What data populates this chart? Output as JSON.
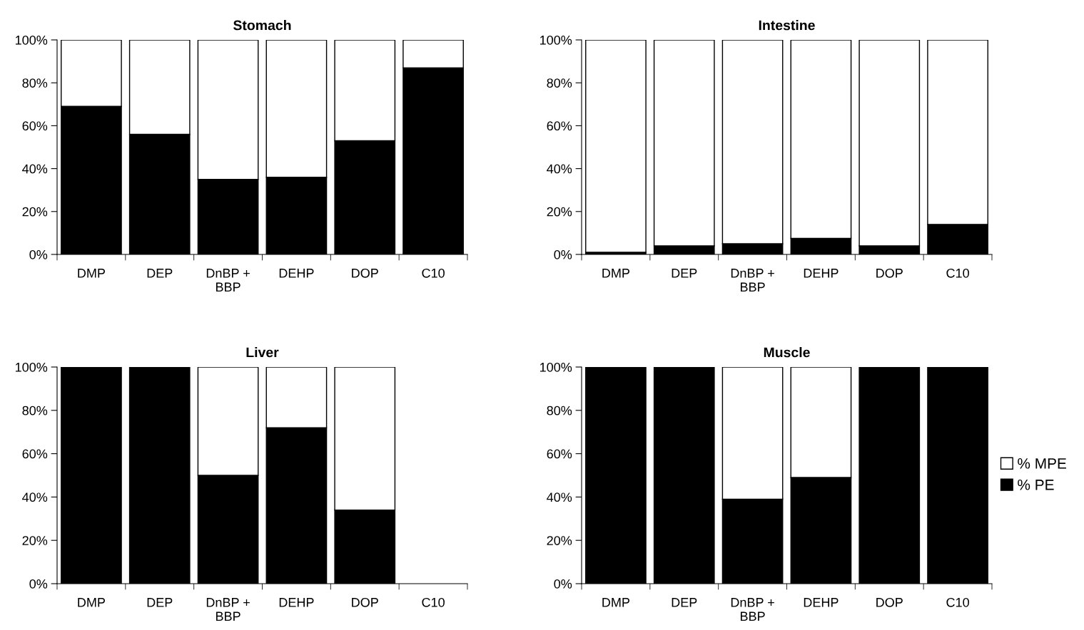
{
  "chart_data": [
    {
      "type": "bar",
      "title": "Stomach",
      "stacked": true,
      "categories": [
        "DMP",
        "DEP",
        "DnBP +\nBBP",
        "DEHP",
        "DOP",
        "C10"
      ],
      "series": [
        {
          "color": "#000000",
          "values": [
            69,
            56,
            35,
            36,
            53,
            87
          ]
        },
        {
          "color": "#ffffff",
          "values": [
            31,
            44,
            65,
            64,
            47,
            13
          ]
        }
      ],
      "ylim": [
        0,
        100
      ],
      "yticks": [
        {
          "value": 0,
          "label": "0%"
        },
        {
          "value": 20,
          "label": "20%"
        },
        {
          "value": 40,
          "label": "40%"
        },
        {
          "value": 60,
          "label": "60%"
        },
        {
          "value": 80,
          "label": "80%"
        },
        {
          "value": 100,
          "label": "100%"
        }
      ],
      "grid": false,
      "legend": false
    },
    {
      "type": "bar",
      "title": "Intestine",
      "stacked": true,
      "categories": [
        "DMP",
        "DEP",
        "DnBP +\nBBP",
        "DEHP",
        "DOP",
        "C10"
      ],
      "series": [
        {
          "color": "#000000",
          "values": [
            1,
            4,
            5,
            7.5,
            4,
            14
          ]
        },
        {
          "color": "#ffffff",
          "values": [
            99,
            96,
            95,
            92.5,
            96,
            86
          ]
        }
      ],
      "ylim": [
        0,
        100
      ],
      "yticks": [
        {
          "value": 0,
          "label": "0%"
        },
        {
          "value": 20,
          "label": "20%"
        },
        {
          "value": 40,
          "label": "40%"
        },
        {
          "value": 60,
          "label": "60%"
        },
        {
          "value": 80,
          "label": "80%"
        },
        {
          "value": 100,
          "label": "100%"
        }
      ],
      "grid": false,
      "legend": false
    },
    {
      "type": "bar",
      "title": "Liver",
      "stacked": true,
      "categories": [
        "DMP",
        "DEP",
        "DnBP +\nBBP",
        "DEHP",
        "DOP",
        "C10"
      ],
      "series": [
        {
          "color": "#000000",
          "values": [
            100,
            100,
            50,
            72,
            34,
            null
          ]
        },
        {
          "color": "#ffffff",
          "values": [
            0,
            0,
            50,
            28,
            66,
            null
          ]
        }
      ],
      "ylim": [
        0,
        100
      ],
      "yticks": [
        {
          "value": 0,
          "label": "0%"
        },
        {
          "value": 20,
          "label": "20%"
        },
        {
          "value": 40,
          "label": "40%"
        },
        {
          "value": 60,
          "label": "60%"
        },
        {
          "value": 80,
          "label": "80%"
        },
        {
          "value": 100,
          "label": "100%"
        }
      ],
      "grid": false,
      "legend": false
    },
    {
      "type": "bar",
      "title": "Muscle",
      "stacked": true,
      "categories": [
        "DMP",
        "DEP",
        "DnBP +\nBBP",
        "DEHP",
        "DOP",
        "C10"
      ],
      "series": [
        {
          "name": "% PE",
          "color": "#000000",
          "values": [
            100,
            100,
            39,
            49,
            100,
            100
          ]
        },
        {
          "name": "% MPE",
          "color": "#ffffff",
          "values": [
            0,
            0,
            61,
            51,
            0,
            0
          ]
        }
      ],
      "ylim": [
        0,
        100
      ],
      "yticks": [
        {
          "value": 0,
          "label": "0%"
        },
        {
          "value": 20,
          "label": "20%"
        },
        {
          "value": 40,
          "label": "40%"
        },
        {
          "value": 60,
          "label": "60%"
        },
        {
          "value": 80,
          "label": "80%"
        },
        {
          "value": 100,
          "label": "100%"
        }
      ],
      "grid": false,
      "legend": "right"
    }
  ]
}
